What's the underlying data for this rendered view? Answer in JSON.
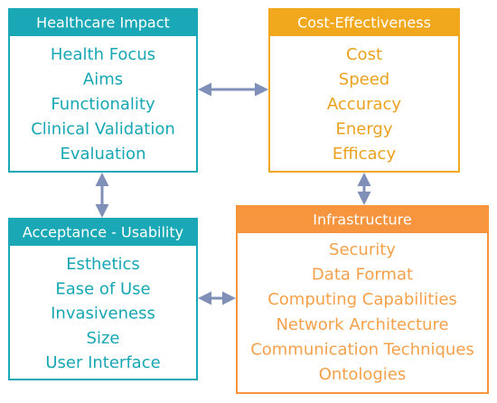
{
  "boxes": [
    {
      "title": "Healthcare Impact",
      "items": [
        "Health Focus",
        "Aims",
        "Functionality",
        "Clinical Validation",
        "Evaluation"
      ]
    },
    {
      "title": "Cost-Effectiveness",
      "items": [
        "Cost",
        "Speed",
        "Accuracy",
        "Energy",
        "Efficacy"
      ]
    },
    {
      "title": "Acceptance - Usability",
      "items": [
        "Esthetics",
        "Ease of Use",
        "Invasiveness",
        "Size",
        "User Interface"
      ]
    },
    {
      "title": "Infrastructure",
      "items": [
        "Security",
        "Data Format",
        "Computing Capabilities",
        "Network Architecture",
        "Communication Techniques",
        "Ontologies"
      ]
    }
  ]
}
